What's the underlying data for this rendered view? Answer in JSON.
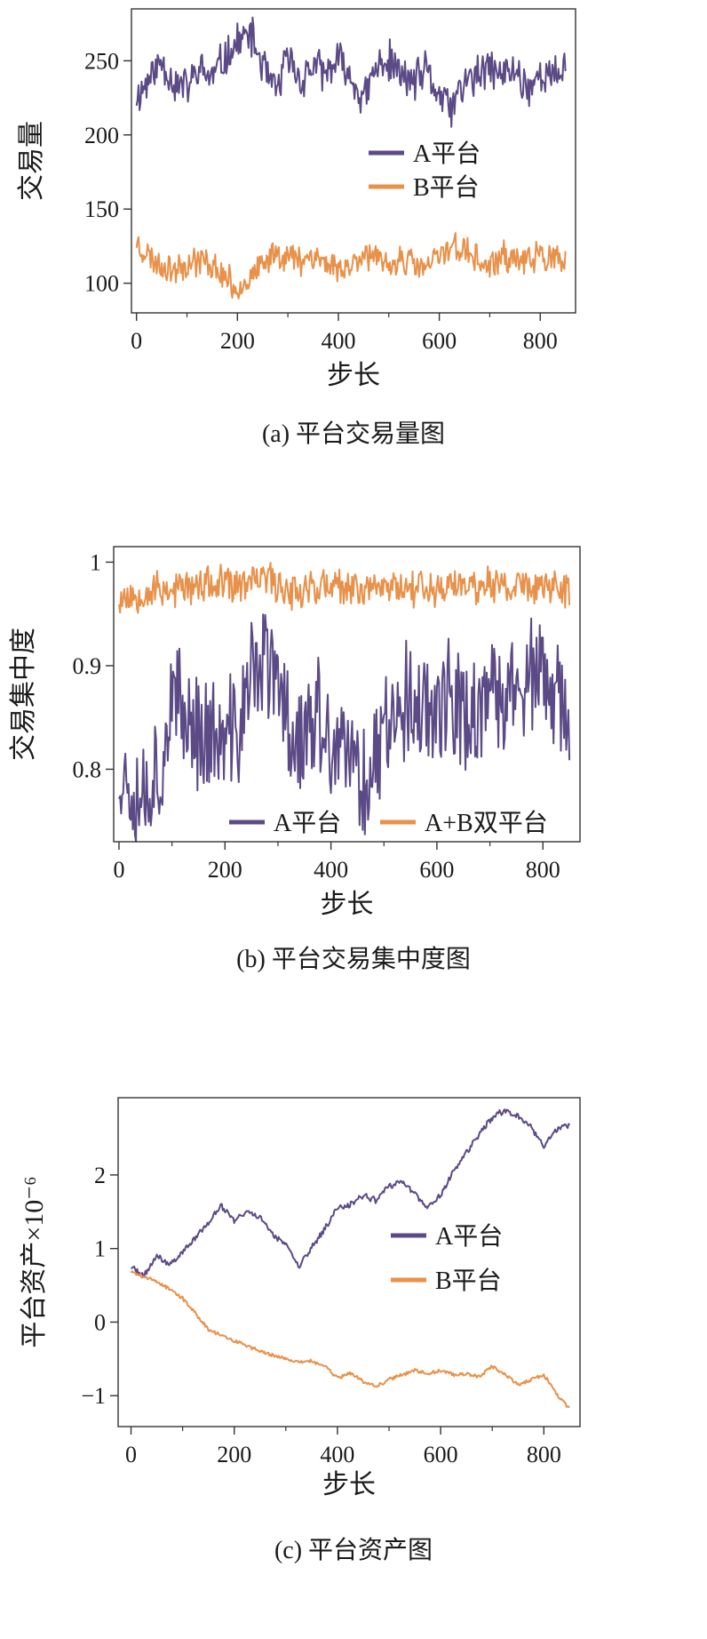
{
  "colors": {
    "platform_a": "#5b4a86",
    "platform_b": "#e8914a",
    "axis": "#333333"
  },
  "chart_data": [
    {
      "type": "line",
      "caption": "(a)  平台交易量图",
      "xlabel": "步长",
      "ylabel": "交易量",
      "x_ticks": [
        0,
        200,
        400,
        600,
        800
      ],
      "y_ticks": [
        100,
        150,
        200,
        250
      ],
      "xlim": [
        -10,
        870
      ],
      "ylim": [
        80,
        285
      ],
      "legend_position": "center-right",
      "series": [
        {
          "name": "A平台",
          "color": "#5b4a86",
          "x": [
            0,
            25,
            50,
            75,
            100,
            125,
            150,
            175,
            200,
            225,
            250,
            275,
            300,
            325,
            350,
            375,
            400,
            425,
            450,
            475,
            500,
            525,
            550,
            575,
            600,
            625,
            650,
            675,
            700,
            725,
            750,
            775,
            800,
            825,
            850
          ],
          "y": [
            225,
            238,
            250,
            235,
            232,
            244,
            238,
            252,
            262,
            268,
            247,
            228,
            252,
            236,
            247,
            240,
            250,
            238,
            223,
            245,
            250,
            240,
            236,
            243,
            226,
            218,
            236,
            239,
            245,
            240,
            244,
            232,
            241,
            238,
            248
          ],
          "noise": 16,
          "seed": 11
        },
        {
          "name": "B平台",
          "color": "#e8914a",
          "x": [
            0,
            25,
            50,
            75,
            100,
            125,
            150,
            175,
            200,
            225,
            250,
            275,
            300,
            325,
            350,
            375,
            400,
            425,
            450,
            475,
            500,
            525,
            550,
            575,
            600,
            625,
            650,
            675,
            700,
            725,
            750,
            775,
            800,
            825,
            850
          ],
          "y": [
            128,
            118,
            112,
            110,
            114,
            116,
            112,
            104,
            96,
            104,
            110,
            122,
            118,
            116,
            120,
            113,
            110,
            112,
            122,
            115,
            110,
            118,
            112,
            110,
            118,
            126,
            122,
            116,
            110,
            118,
            116,
            114,
            120,
            116,
            112
          ],
          "noise": 12,
          "seed": 23
        }
      ]
    },
    {
      "type": "line",
      "caption": "(b)  平台交易集中度图",
      "xlabel": "步长",
      "ylabel": "交易集中度",
      "x_ticks": [
        0,
        200,
        400,
        600,
        800
      ],
      "y_ticks": [
        0.8,
        0.9,
        1.0
      ],
      "xlim": [
        -10,
        870
      ],
      "ylim": [
        0.73,
        1.015
      ],
      "legend_position": "bottom",
      "series": [
        {
          "name": "A平台",
          "color": "#5b4a86",
          "x": [
            0,
            25,
            50,
            75,
            100,
            125,
            150,
            175,
            200,
            225,
            250,
            275,
            300,
            325,
            350,
            375,
            400,
            425,
            450,
            475,
            500,
            525,
            550,
            575,
            600,
            625,
            650,
            675,
            700,
            725,
            750,
            775,
            800,
            825,
            850
          ],
          "y": [
            0.8,
            0.79,
            0.78,
            0.8,
            0.86,
            0.85,
            0.84,
            0.83,
            0.82,
            0.84,
            0.89,
            0.91,
            0.88,
            0.84,
            0.83,
            0.85,
            0.82,
            0.81,
            0.8,
            0.79,
            0.84,
            0.87,
            0.86,
            0.86,
            0.87,
            0.86,
            0.85,
            0.86,
            0.86,
            0.87,
            0.88,
            0.89,
            0.88,
            0.86,
            0.85
          ],
          "noise": 0.07,
          "seed": 37
        },
        {
          "name": "A+B双平台",
          "color": "#e8914a",
          "x": [
            0,
            25,
            50,
            75,
            100,
            125,
            150,
            175,
            200,
            225,
            250,
            275,
            300,
            325,
            350,
            375,
            400,
            425,
            450,
            475,
            500,
            525,
            550,
            575,
            600,
            625,
            650,
            675,
            700,
            725,
            750,
            775,
            800,
            825,
            850
          ],
          "y": [
            0.965,
            0.968,
            0.972,
            0.975,
            0.974,
            0.976,
            0.975,
            0.978,
            0.976,
            0.977,
            0.98,
            0.985,
            0.978,
            0.974,
            0.975,
            0.977,
            0.975,
            0.973,
            0.975,
            0.976,
            0.977,
            0.979,
            0.977,
            0.976,
            0.975,
            0.976,
            0.978,
            0.979,
            0.977,
            0.976,
            0.978,
            0.977,
            0.976,
            0.974,
            0.977
          ],
          "noise": 0.022,
          "seed": 53
        }
      ]
    },
    {
      "type": "line",
      "caption": "(c)  平台资产图",
      "xlabel": "步长",
      "ylabel": "平台资产×10⁻⁶",
      "x_ticks": [
        0,
        200,
        400,
        600,
        800
      ],
      "y_ticks": [
        -1,
        0,
        1,
        2
      ],
      "xlim": [
        -25,
        870
      ],
      "ylim": [
        -1.42,
        3.05
      ],
      "legend_position": "center-right",
      "series": [
        {
          "name": "A平台",
          "color": "#5b4a86",
          "x": [
            0,
            25,
            50,
            75,
            100,
            125,
            150,
            175,
            200,
            225,
            250,
            275,
            300,
            325,
            350,
            375,
            400,
            425,
            450,
            475,
            500,
            525,
            550,
            575,
            600,
            625,
            650,
            675,
            700,
            725,
            750,
            775,
            800,
            825,
            850
          ],
          "y": [
            0.75,
            0.62,
            0.9,
            0.78,
            0.95,
            1.15,
            1.35,
            1.58,
            1.38,
            1.5,
            1.42,
            1.2,
            1.05,
            0.75,
            1.02,
            1.25,
            1.55,
            1.6,
            1.72,
            1.65,
            1.85,
            1.9,
            1.75,
            1.55,
            1.72,
            2.05,
            2.3,
            2.55,
            2.78,
            2.88,
            2.8,
            2.65,
            2.4,
            2.62,
            2.68
          ],
          "noise": 0.05,
          "seed": 71
        },
        {
          "name": "B平台",
          "color": "#e8914a",
          "x": [
            0,
            25,
            50,
            75,
            100,
            125,
            150,
            175,
            200,
            225,
            250,
            275,
            300,
            325,
            350,
            375,
            400,
            425,
            450,
            475,
            500,
            525,
            550,
            575,
            600,
            625,
            650,
            675,
            700,
            725,
            750,
            775,
            800,
            825,
            850
          ],
          "y": [
            0.68,
            0.62,
            0.55,
            0.45,
            0.32,
            0.12,
            -0.1,
            -0.18,
            -0.25,
            -0.32,
            -0.4,
            -0.45,
            -0.5,
            -0.55,
            -0.52,
            -0.6,
            -0.75,
            -0.7,
            -0.8,
            -0.88,
            -0.78,
            -0.72,
            -0.65,
            -0.7,
            -0.66,
            -0.72,
            -0.7,
            -0.74,
            -0.6,
            -0.72,
            -0.85,
            -0.78,
            -0.72,
            -0.98,
            -1.18
          ],
          "noise": 0.03,
          "seed": 89
        }
      ]
    }
  ]
}
